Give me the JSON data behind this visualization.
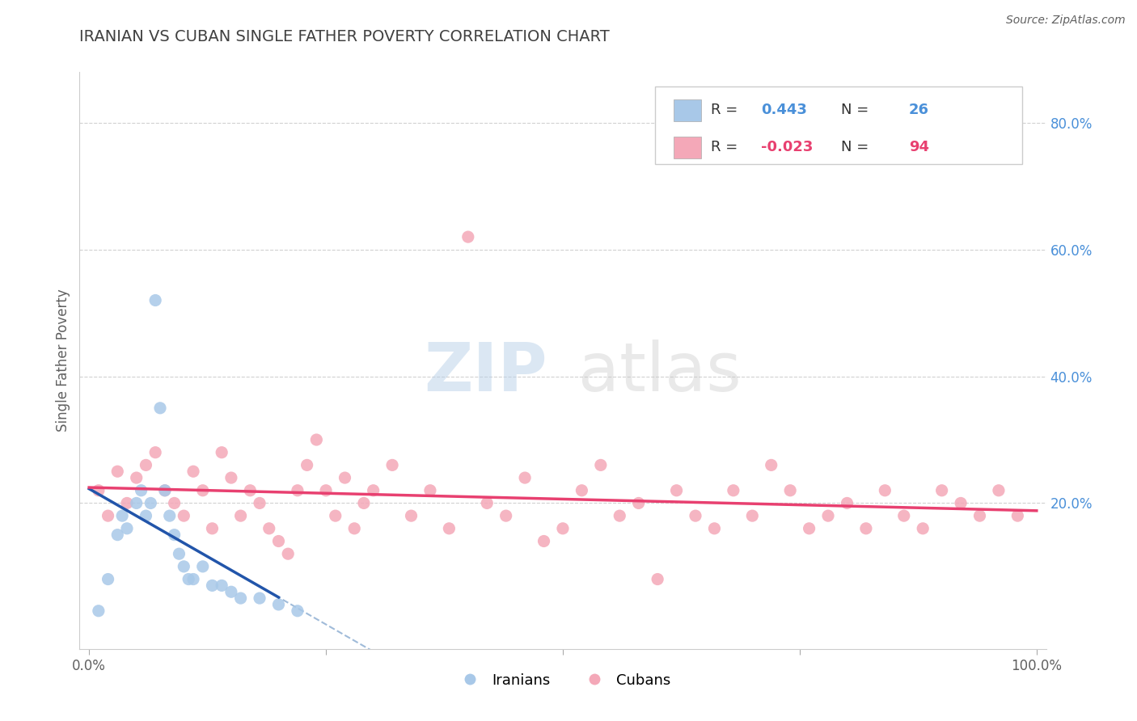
{
  "title": "IRANIAN VS CUBAN SINGLE FATHER POVERTY CORRELATION CHART",
  "source": "Source: ZipAtlas.com",
  "ylabel": "Single Father Poverty",
  "legend_label_iranian": "Iranians",
  "legend_label_cuban": "Cubans",
  "iranian_color": "#a8c8e8",
  "cuban_color": "#f4a8b8",
  "iranian_trend_color": "#2255aa",
  "cuban_trend_color": "#e84070",
  "iranian_dash_color": "#88aad0",
  "background_color": "#ffffff",
  "grid_color": "#cccccc",
  "title_color": "#404040",
  "axis_label_color": "#606060",
  "y_tick_color": "#4a90d9",
  "r_value_color_iranian": "#4a90d9",
  "r_value_color_cuban": "#e84070",
  "iranian_x": [
    1.0,
    2.0,
    3.0,
    3.5,
    4.0,
    5.0,
    5.5,
    6.0,
    6.5,
    7.0,
    7.5,
    8.0,
    8.5,
    9.0,
    9.5,
    10.0,
    10.5,
    11.0,
    12.0,
    13.0,
    14.0,
    15.0,
    16.0,
    18.0,
    20.0,
    22.0
  ],
  "iranian_y": [
    3.0,
    8.0,
    15.0,
    18.0,
    16.0,
    20.0,
    22.0,
    18.0,
    20.0,
    52.0,
    35.0,
    22.0,
    18.0,
    15.0,
    12.0,
    10.0,
    8.0,
    8.0,
    10.0,
    7.0,
    7.0,
    6.0,
    5.0,
    5.0,
    4.0,
    3.0
  ],
  "cuban_x": [
    1.0,
    2.0,
    3.0,
    4.0,
    5.0,
    6.0,
    7.0,
    8.0,
    9.0,
    10.0,
    11.0,
    12.0,
    13.0,
    14.0,
    15.0,
    16.0,
    17.0,
    18.0,
    19.0,
    20.0,
    21.0,
    22.0,
    23.0,
    24.0,
    25.0,
    26.0,
    27.0,
    28.0,
    29.0,
    30.0,
    32.0,
    34.0,
    36.0,
    38.0,
    40.0,
    42.0,
    44.0,
    46.0,
    48.0,
    50.0,
    52.0,
    54.0,
    56.0,
    58.0,
    60.0,
    62.0,
    64.0,
    66.0,
    68.0,
    70.0,
    72.0,
    74.0,
    76.0,
    78.0,
    80.0,
    82.0,
    84.0,
    86.0,
    88.0,
    90.0,
    92.0,
    94.0,
    96.0,
    98.0
  ],
  "cuban_y": [
    22.0,
    18.0,
    25.0,
    20.0,
    24.0,
    26.0,
    28.0,
    22.0,
    20.0,
    18.0,
    25.0,
    22.0,
    16.0,
    28.0,
    24.0,
    18.0,
    22.0,
    20.0,
    16.0,
    14.0,
    12.0,
    22.0,
    26.0,
    30.0,
    22.0,
    18.0,
    24.0,
    16.0,
    20.0,
    22.0,
    26.0,
    18.0,
    22.0,
    16.0,
    62.0,
    20.0,
    18.0,
    24.0,
    14.0,
    16.0,
    22.0,
    26.0,
    18.0,
    20.0,
    8.0,
    22.0,
    18.0,
    16.0,
    22.0,
    18.0,
    26.0,
    22.0,
    16.0,
    18.0,
    20.0,
    16.0,
    22.0,
    18.0,
    16.0,
    22.0,
    20.0,
    18.0,
    22.0,
    18.0
  ],
  "xlim": [
    0,
    100
  ],
  "ylim": [
    0,
    85
  ],
  "watermark_zip_color": "#b8d0e8",
  "watermark_atlas_color": "#c8c8c8"
}
